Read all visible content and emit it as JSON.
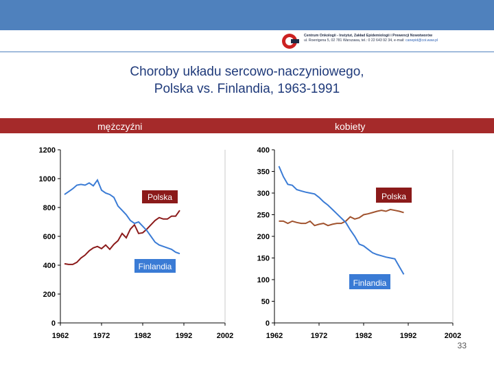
{
  "header": {
    "institute_line1": "Centrum Onkologii - Instytut, Zakład Epidemiologii i Prewencji Nowotworów",
    "institute_line2": "ul. Roentgena 5, 02 781 Warszawa, tel.: 0 22 643 92 34, e-mail:",
    "institute_email": "canepid@coi.waw.pl"
  },
  "title": {
    "line1": "Choroby układu sercowo-naczyniowego,",
    "line2": "Polska vs. Finlandia, 1963-1991"
  },
  "sections": {
    "men": "mężczyźni",
    "women": "kobiety"
  },
  "slide_number": "33",
  "colors": {
    "poland": "#8b1a1a",
    "finland": "#3a7bd5",
    "poland_women": "#a0522d",
    "header": "#4f81bd",
    "band": "#a52a2a",
    "title": "#1f3a7a"
  },
  "chart_data": [
    {
      "type": "line",
      "title": "mężczyźni",
      "xlim": [
        1962,
        2002
      ],
      "x_ticks": [
        1962,
        1972,
        1982,
        1992,
        2002
      ],
      "ylim": [
        0,
        1200
      ],
      "y_ticks": [
        0,
        200,
        400,
        600,
        800,
        1000,
        1200
      ],
      "x": [
        1963,
        1964,
        1965,
        1966,
        1967,
        1968,
        1969,
        1970,
        1971,
        1972,
        1973,
        1974,
        1975,
        1976,
        1977,
        1978,
        1979,
        1980,
        1981,
        1982,
        1983,
        1984,
        1985,
        1986,
        1987,
        1988,
        1989,
        1990,
        1991
      ],
      "series": [
        {
          "name": "Polska",
          "label_text": "Polska",
          "values": [
            410,
            405,
            405,
            420,
            450,
            470,
            500,
            520,
            530,
            515,
            540,
            510,
            545,
            570,
            620,
            590,
            650,
            680,
            620,
            625,
            650,
            680,
            710,
            730,
            720,
            720,
            740,
            740,
            780
          ]
        },
        {
          "name": "Finlandia",
          "label_text": "Finlandia",
          "values": [
            890,
            910,
            930,
            955,
            960,
            955,
            970,
            950,
            990,
            920,
            900,
            890,
            870,
            810,
            780,
            750,
            710,
            690,
            700,
            670,
            640,
            600,
            560,
            540,
            530,
            520,
            510,
            490,
            480
          ]
        }
      ]
    },
    {
      "type": "line",
      "title": "kobiety",
      "xlim": [
        1962,
        2002
      ],
      "x_ticks": [
        1962,
        1972,
        1982,
        1992,
        2002
      ],
      "ylim": [
        0,
        400
      ],
      "y_ticks": [
        0,
        50,
        100,
        150,
        200,
        250,
        300,
        350,
        400
      ],
      "x": [
        1963,
        1964,
        1965,
        1966,
        1967,
        1968,
        1969,
        1970,
        1971,
        1972,
        1973,
        1974,
        1975,
        1976,
        1977,
        1978,
        1979,
        1980,
        1981,
        1982,
        1983,
        1984,
        1985,
        1986,
        1987,
        1988,
        1989,
        1990,
        1991
      ],
      "series": [
        {
          "name": "Polska",
          "label_text": "Polska",
          "values": [
            235,
            235,
            230,
            235,
            232,
            230,
            230,
            235,
            225,
            228,
            230,
            225,
            228,
            230,
            230,
            235,
            245,
            240,
            243,
            250,
            252,
            255,
            258,
            260,
            258,
            262,
            260,
            258,
            255
          ]
        },
        {
          "name": "Finlandia",
          "label_text": "Finlandia",
          "values": [
            362,
            338,
            320,
            318,
            308,
            305,
            302,
            300,
            298,
            290,
            280,
            272,
            262,
            252,
            242,
            232,
            215,
            200,
            182,
            178,
            170,
            162,
            158,
            155,
            152,
            150,
            148,
            130,
            112
          ]
        }
      ]
    }
  ]
}
